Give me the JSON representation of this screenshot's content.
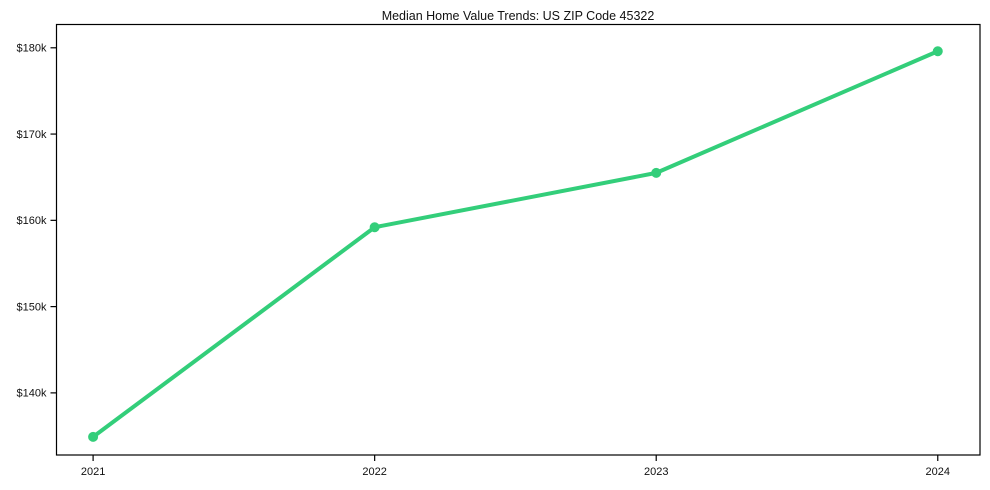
{
  "chart_data": {
    "type": "line",
    "title": "Median Home Value Trends: US ZIP Code 45322",
    "x": [
      2021,
      2022,
      2023,
      2024
    ],
    "x_tick_labels": [
      "2021",
      "2022",
      "2023",
      "2024"
    ],
    "series": [
      {
        "name": "Median Home Value",
        "values": [
          134900,
          159200,
          165500,
          179600
        ]
      }
    ],
    "y_ticks": [
      140000,
      150000,
      160000,
      170000,
      180000
    ],
    "y_tick_labels": [
      "$140k",
      "$150k",
      "$160k",
      "$170k",
      "$180k"
    ],
    "xlim": [
      2020.87,
      2024.15
    ],
    "ylim": [
      132800,
      182700
    ],
    "xlabel": "",
    "ylabel": "",
    "grid": false,
    "legend_position": "none",
    "line_color": "#33ce7a",
    "marker": "circle",
    "marker_color": "#33ce7a",
    "frame_color": "#000000",
    "background_color": "#ffffff",
    "text_color": "#111111"
  }
}
